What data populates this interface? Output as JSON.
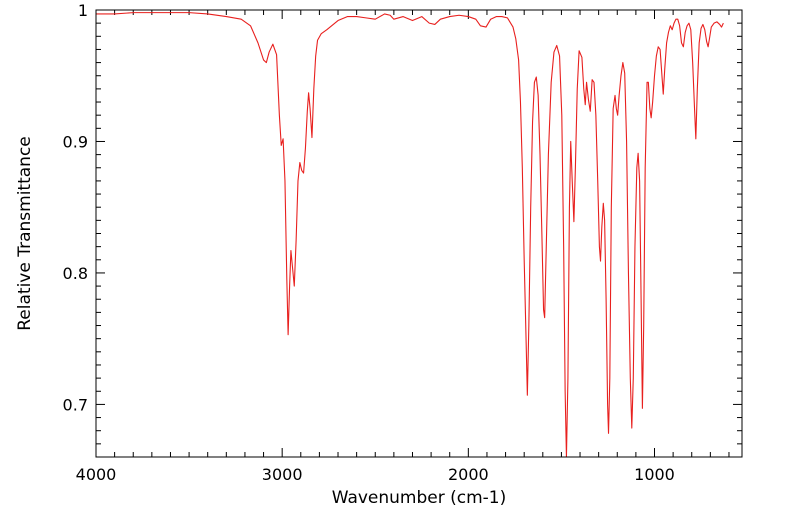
{
  "chart_data": {
    "type": "line",
    "title": "",
    "xlabel": "Wavenumber (cm-1)",
    "ylabel": "Relative Transmittance",
    "xlim": [
      4000,
      530
    ],
    "ylim": [
      0.66,
      1.0
    ],
    "x_reversed": true,
    "x_ticks": [
      4000,
      3000,
      2000,
      1000
    ],
    "x_tick_labels": [
      "4000",
      "3000",
      "2000",
      "1000"
    ],
    "y_ticks": [
      0.7,
      0.8,
      0.9,
      1.0
    ],
    "y_tick_labels": [
      "0.7",
      "0.8",
      "0.9",
      "1"
    ],
    "grid": false,
    "legend": "none",
    "series": [
      {
        "color": "#e8201e",
        "points": [
          [
            4000,
            0.997
          ],
          [
            3900,
            0.997
          ],
          [
            3800,
            0.998
          ],
          [
            3700,
            0.998
          ],
          [
            3600,
            0.998
          ],
          [
            3500,
            0.998
          ],
          [
            3400,
            0.997
          ],
          [
            3300,
            0.995
          ],
          [
            3220,
            0.993
          ],
          [
            3170,
            0.988
          ],
          [
            3130,
            0.975
          ],
          [
            3100,
            0.962
          ],
          [
            3085,
            0.96
          ],
          [
            3070,
            0.968
          ],
          [
            3050,
            0.974
          ],
          [
            3030,
            0.966
          ],
          [
            3015,
            0.92
          ],
          [
            3005,
            0.897
          ],
          [
            2995,
            0.902
          ],
          [
            2985,
            0.87
          ],
          [
            2975,
            0.795
          ],
          [
            2968,
            0.753
          ],
          [
            2960,
            0.79
          ],
          [
            2953,
            0.817
          ],
          [
            2945,
            0.805
          ],
          [
            2935,
            0.79
          ],
          [
            2925,
            0.825
          ],
          [
            2915,
            0.87
          ],
          [
            2905,
            0.884
          ],
          [
            2895,
            0.878
          ],
          [
            2885,
            0.876
          ],
          [
            2875,
            0.895
          ],
          [
            2865,
            0.923
          ],
          [
            2858,
            0.937
          ],
          [
            2850,
            0.925
          ],
          [
            2840,
            0.903
          ],
          [
            2830,
            0.94
          ],
          [
            2820,
            0.965
          ],
          [
            2810,
            0.977
          ],
          [
            2790,
            0.982
          ],
          [
            2760,
            0.985
          ],
          [
            2700,
            0.992
          ],
          [
            2650,
            0.995
          ],
          [
            2600,
            0.995
          ],
          [
            2550,
            0.994
          ],
          [
            2500,
            0.993
          ],
          [
            2450,
            0.997
          ],
          [
            2420,
            0.996
          ],
          [
            2400,
            0.993
          ],
          [
            2350,
            0.995
          ],
          [
            2300,
            0.992
          ],
          [
            2250,
            0.995
          ],
          [
            2210,
            0.99
          ],
          [
            2180,
            0.989
          ],
          [
            2150,
            0.993
          ],
          [
            2100,
            0.995
          ],
          [
            2050,
            0.996
          ],
          [
            2000,
            0.995
          ],
          [
            1960,
            0.993
          ],
          [
            1935,
            0.988
          ],
          [
            1905,
            0.987
          ],
          [
            1880,
            0.993
          ],
          [
            1850,
            0.995
          ],
          [
            1820,
            0.995
          ],
          [
            1790,
            0.994
          ],
          [
            1760,
            0.987
          ],
          [
            1745,
            0.978
          ],
          [
            1730,
            0.962
          ],
          [
            1720,
            0.93
          ],
          [
            1710,
            0.88
          ],
          [
            1700,
            0.81
          ],
          [
            1690,
            0.75
          ],
          [
            1683,
            0.707
          ],
          [
            1675,
            0.76
          ],
          [
            1665,
            0.85
          ],
          [
            1655,
            0.915
          ],
          [
            1645,
            0.945
          ],
          [
            1635,
            0.949
          ],
          [
            1625,
            0.935
          ],
          [
            1615,
            0.89
          ],
          [
            1605,
            0.83
          ],
          [
            1596,
            0.772
          ],
          [
            1590,
            0.766
          ],
          [
            1583,
            0.81
          ],
          [
            1570,
            0.89
          ],
          [
            1555,
            0.945
          ],
          [
            1540,
            0.968
          ],
          [
            1525,
            0.973
          ],
          [
            1510,
            0.965
          ],
          [
            1498,
            0.92
          ],
          [
            1488,
            0.82
          ],
          [
            1480,
            0.71
          ],
          [
            1473,
            0.66
          ],
          [
            1465,
            0.72
          ],
          [
            1457,
            0.85
          ],
          [
            1450,
            0.9
          ],
          [
            1442,
            0.87
          ],
          [
            1433,
            0.839
          ],
          [
            1425,
            0.88
          ],
          [
            1415,
            0.94
          ],
          [
            1405,
            0.969
          ],
          [
            1390,
            0.964
          ],
          [
            1380,
            0.94
          ],
          [
            1372,
            0.928
          ],
          [
            1365,
            0.945
          ],
          [
            1355,
            0.932
          ],
          [
            1345,
            0.923
          ],
          [
            1335,
            0.947
          ],
          [
            1325,
            0.945
          ],
          [
            1315,
            0.92
          ],
          [
            1305,
            0.87
          ],
          [
            1296,
            0.82
          ],
          [
            1290,
            0.809
          ],
          [
            1283,
            0.835
          ],
          [
            1275,
            0.853
          ],
          [
            1268,
            0.84
          ],
          [
            1260,
            0.78
          ],
          [
            1252,
            0.7
          ],
          [
            1247,
            0.678
          ],
          [
            1240,
            0.72
          ],
          [
            1232,
            0.85
          ],
          [
            1222,
            0.925
          ],
          [
            1212,
            0.935
          ],
          [
            1205,
            0.925
          ],
          [
            1198,
            0.92
          ],
          [
            1190,
            0.935
          ],
          [
            1180,
            0.95
          ],
          [
            1170,
            0.96
          ],
          [
            1160,
            0.952
          ],
          [
            1150,
            0.9
          ],
          [
            1140,
            0.8
          ],
          [
            1130,
            0.72
          ],
          [
            1122,
            0.682
          ],
          [
            1114,
            0.72
          ],
          [
            1105,
            0.82
          ],
          [
            1095,
            0.88
          ],
          [
            1088,
            0.891
          ],
          [
            1080,
            0.87
          ],
          [
            1072,
            0.78
          ],
          [
            1065,
            0.697
          ],
          [
            1058,
            0.76
          ],
          [
            1050,
            0.88
          ],
          [
            1040,
            0.945
          ],
          [
            1033,
            0.945
          ],
          [
            1025,
            0.925
          ],
          [
            1018,
            0.918
          ],
          [
            1010,
            0.93
          ],
          [
            1000,
            0.95
          ],
          [
            990,
            0.965
          ],
          [
            980,
            0.972
          ],
          [
            970,
            0.97
          ],
          [
            960,
            0.95
          ],
          [
            953,
            0.936
          ],
          [
            945,
            0.955
          ],
          [
            935,
            0.975
          ],
          [
            925,
            0.983
          ],
          [
            915,
            0.988
          ],
          [
            905,
            0.985
          ],
          [
            895,
            0.99
          ],
          [
            885,
            0.993
          ],
          [
            875,
            0.993
          ],
          [
            865,
            0.988
          ],
          [
            855,
            0.975
          ],
          [
            845,
            0.972
          ],
          [
            835,
            0.983
          ],
          [
            825,
            0.988
          ],
          [
            815,
            0.99
          ],
          [
            805,
            0.985
          ],
          [
            795,
            0.96
          ],
          [
            785,
            0.925
          ],
          [
            778,
            0.902
          ],
          [
            770,
            0.94
          ],
          [
            760,
            0.975
          ],
          [
            750,
            0.986
          ],
          [
            740,
            0.989
          ],
          [
            730,
            0.985
          ],
          [
            720,
            0.976
          ],
          [
            712,
            0.972
          ],
          [
            705,
            0.978
          ],
          [
            695,
            0.987
          ],
          [
            680,
            0.99
          ],
          [
            665,
            0.991
          ],
          [
            650,
            0.989
          ],
          [
            640,
            0.987
          ],
          [
            630,
            0.99
          ]
        ]
      }
    ]
  }
}
